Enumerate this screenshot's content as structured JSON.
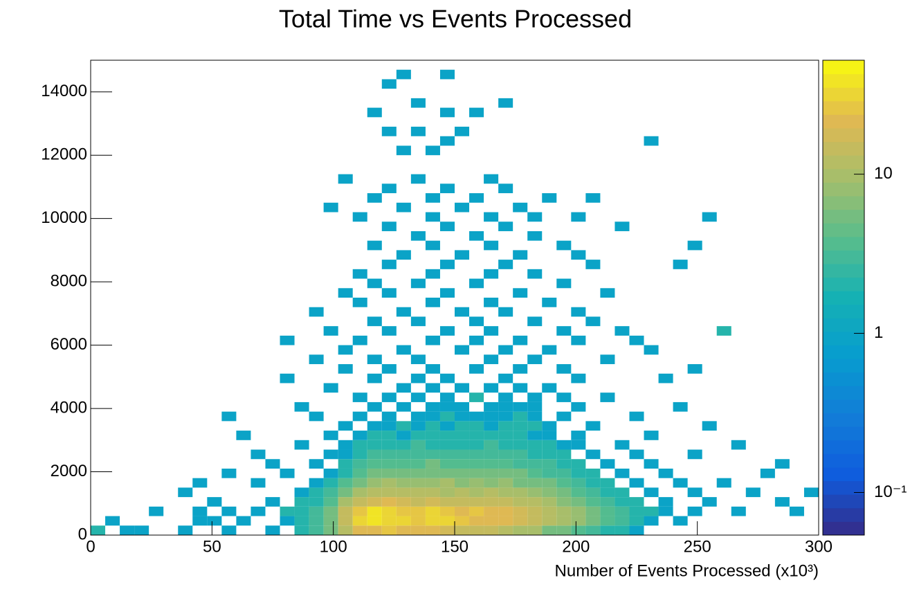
{
  "chart_data": {
    "type": "heatmap",
    "title": "Total Time vs Events Processed",
    "x_label": "Number of Events Processed (x10³)",
    "xlim": [
      0,
      300
    ],
    "xticks": [
      0,
      50,
      100,
      150,
      200,
      250,
      300
    ],
    "ylim": [
      0,
      15000
    ],
    "yticks": [
      0,
      2000,
      4000,
      6000,
      8000,
      10000,
      12000,
      14000
    ],
    "zscale": "log",
    "zlim": [
      0.054,
      52
    ],
    "zticks": [
      {
        "value": 0.1,
        "label": "10⁻¹"
      },
      1,
      10
    ],
    "palette": "bird",
    "rows": [
      {
        "y": 150,
        "x": [
          3,
          15,
          21,
          39,
          57,
          75,
          87,
          93,
          99,
          105,
          111,
          117,
          123,
          129,
          135,
          141,
          147,
          153,
          159,
          165,
          171,
          177,
          183,
          189,
          195,
          201,
          207,
          213,
          219,
          225
        ],
        "values": [
          2,
          1,
          1,
          1,
          1,
          1,
          2,
          3,
          5,
          12,
          20,
          22,
          25,
          20,
          22,
          20,
          18,
          16,
          15,
          14,
          12,
          10,
          9,
          6,
          5,
          4,
          3,
          2,
          2,
          1
        ]
      },
      {
        "y": 450,
        "x": [
          9,
          45,
          51,
          63,
          81,
          87,
          93,
          99,
          105,
          111,
          117,
          123,
          129,
          135,
          141,
          147,
          153,
          159,
          165,
          171,
          177,
          183,
          189,
          195,
          201,
          207,
          213,
          219,
          225,
          231,
          243
        ],
        "values": [
          1,
          1,
          1,
          1,
          1,
          2,
          3,
          6,
          15,
          30,
          40,
          35,
          30,
          28,
          30,
          32,
          25,
          22,
          20,
          22,
          18,
          15,
          12,
          10,
          8,
          5,
          4,
          3,
          2,
          1,
          1
        ]
      },
      {
        "y": 750,
        "x": [
          27,
          45,
          57,
          69,
          81,
          87,
          93,
          99,
          105,
          111,
          117,
          123,
          129,
          135,
          141,
          147,
          153,
          159,
          165,
          171,
          177,
          183,
          189,
          195,
          201,
          207,
          213,
          219,
          225,
          231,
          237,
          249,
          267,
          291
        ],
        "values": [
          1,
          1,
          1,
          1,
          2,
          2,
          3,
          6,
          14,
          28,
          38,
          30,
          28,
          25,
          30,
          25,
          22,
          24,
          20,
          22,
          18,
          16,
          12,
          9,
          8,
          5,
          4,
          3,
          2,
          2,
          1,
          1,
          1,
          1
        ]
      },
      {
        "y": 1050,
        "x": [
          51,
          75,
          87,
          93,
          99,
          105,
          111,
          117,
          123,
          129,
          135,
          141,
          147,
          153,
          159,
          165,
          171,
          177,
          183,
          189,
          195,
          201,
          207,
          213,
          219,
          225,
          237,
          255,
          285
        ],
        "values": [
          1,
          1,
          2,
          2,
          4,
          10,
          14,
          18,
          20,
          18,
          16,
          18,
          16,
          15,
          14,
          16,
          14,
          12,
          12,
          10,
          7,
          6,
          4,
          3,
          2,
          2,
          1,
          1,
          1
        ]
      },
      {
        "y": 1350,
        "x": [
          39,
          87,
          93,
          99,
          105,
          111,
          117,
          123,
          129,
          135,
          141,
          147,
          153,
          159,
          165,
          171,
          177,
          183,
          189,
          195,
          201,
          207,
          213,
          219,
          231,
          249,
          273,
          297
        ],
        "values": [
          1,
          1,
          2,
          3,
          6,
          10,
          12,
          12,
          11,
          12,
          12,
          10,
          11,
          10,
          11,
          10,
          9,
          8,
          7,
          5,
          4,
          3,
          2,
          2,
          1,
          1,
          1,
          1
        ]
      },
      {
        "y": 1650,
        "x": [
          45,
          69,
          93,
          99,
          105,
          111,
          117,
          123,
          129,
          135,
          141,
          147,
          153,
          159,
          165,
          171,
          177,
          183,
          189,
          195,
          201,
          207,
          213,
          225,
          243,
          261
        ],
        "values": [
          1,
          1,
          1,
          2,
          4,
          6,
          8,
          9,
          8,
          8,
          8,
          9,
          7,
          8,
          7,
          8,
          6,
          6,
          5,
          4,
          3,
          2,
          2,
          1,
          1,
          1
        ]
      },
      {
        "y": 1950,
        "x": [
          57,
          81,
          99,
          105,
          111,
          117,
          123,
          129,
          135,
          141,
          147,
          153,
          159,
          165,
          171,
          177,
          183,
          189,
          195,
          201,
          207,
          219,
          237,
          279
        ],
        "values": [
          1,
          1,
          1,
          2,
          4,
          5,
          6,
          6,
          5,
          6,
          6,
          5,
          6,
          5,
          5,
          5,
          4,
          3,
          3,
          2,
          2,
          1,
          1,
          1
        ]
      },
      {
        "y": 2250,
        "x": [
          75,
          93,
          105,
          111,
          117,
          123,
          129,
          135,
          141,
          147,
          153,
          159,
          165,
          171,
          177,
          183,
          189,
          195,
          201,
          213,
          231,
          285
        ],
        "values": [
          1,
          1,
          2,
          3,
          4,
          4,
          4,
          4,
          5,
          4,
          4,
          4,
          4,
          4,
          3,
          3,
          3,
          2,
          2,
          1,
          1,
          1
        ]
      },
      {
        "y": 2550,
        "x": [
          69,
          99,
          105,
          111,
          117,
          123,
          129,
          135,
          141,
          147,
          153,
          159,
          165,
          171,
          177,
          183,
          189,
          195,
          207,
          225,
          249
        ],
        "values": [
          1,
          1,
          1,
          2,
          3,
          3,
          3,
          3,
          3,
          3,
          3,
          3,
          3,
          3,
          3,
          2,
          2,
          2,
          1,
          1,
          1
        ]
      },
      {
        "y": 2850,
        "x": [
          87,
          105,
          111,
          117,
          123,
          129,
          135,
          141,
          147,
          153,
          159,
          165,
          171,
          177,
          183,
          189,
          195,
          201,
          219,
          267
        ],
        "values": [
          1,
          1,
          2,
          2,
          2,
          2,
          3,
          2,
          2,
          2,
          2,
          3,
          2,
          2,
          2,
          2,
          1,
          1,
          1,
          1
        ]
      },
      {
        "y": 3150,
        "x": [
          63,
          99,
          111,
          117,
          123,
          129,
          135,
          141,
          147,
          153,
          159,
          165,
          171,
          177,
          183,
          189,
          201,
          231
        ],
        "values": [
          1,
          1,
          1,
          2,
          2,
          1,
          2,
          2,
          2,
          2,
          2,
          2,
          2,
          2,
          1,
          1,
          1,
          1
        ]
      },
      {
        "y": 3450,
        "x": [
          105,
          117,
          123,
          129,
          135,
          141,
          147,
          153,
          159,
          165,
          171,
          177,
          183,
          189,
          207,
          255
        ],
        "values": [
          1,
          1,
          1,
          2,
          1,
          2,
          1,
          2,
          2,
          1,
          2,
          2,
          2,
          1,
          1,
          1
        ]
      },
      {
        "y": 3750,
        "x": [
          57,
          93,
          111,
          123,
          135,
          141,
          147,
          153,
          159,
          165,
          171,
          177,
          183,
          195,
          225
        ],
        "values": [
          1,
          1,
          1,
          1,
          1,
          1,
          2,
          1,
          1,
          1,
          1,
          2,
          1,
          1,
          1
        ]
      },
      {
        "y": 4050,
        "x": [
          87,
          117,
          129,
          141,
          147,
          153,
          165,
          171,
          177,
          183,
          201,
          243
        ],
        "values": [
          1,
          1,
          1,
          1,
          1,
          1,
          1,
          1,
          1,
          1,
          1,
          1
        ]
      },
      {
        "y": 4350,
        "x": [
          111,
          123,
          135,
          147,
          159,
          171,
          183,
          195,
          213
        ],
        "values": [
          1,
          1,
          1,
          1,
          2,
          1,
          1,
          1,
          1
        ]
      },
      {
        "y": 4650,
        "x": [
          99,
          129,
          141,
          153,
          165,
          177,
          189
        ],
        "values": [
          1,
          1,
          1,
          1,
          1,
          1,
          1
        ]
      },
      {
        "y": 4950,
        "x": [
          81,
          117,
          135,
          147,
          171,
          201,
          237
        ],
        "values": [
          1,
          1,
          1,
          1,
          1,
          1,
          1
        ]
      },
      {
        "y": 5250,
        "x": [
          105,
          123,
          141,
          159,
          177,
          195,
          249
        ],
        "values": [
          1,
          1,
          1,
          1,
          1,
          1,
          1
        ]
      },
      {
        "y": 5550,
        "x": [
          93,
          117,
          135,
          165,
          183,
          213
        ],
        "values": [
          1,
          1,
          1,
          1,
          1,
          1
        ]
      },
      {
        "y": 5850,
        "x": [
          105,
          129,
          153,
          171,
          189,
          231
        ],
        "values": [
          1,
          1,
          1,
          1,
          1,
          1
        ]
      },
      {
        "y": 6150,
        "x": [
          81,
          111,
          141,
          159,
          177,
          201,
          225
        ],
        "values": [
          1,
          1,
          1,
          1,
          1,
          1,
          1
        ]
      },
      {
        "y": 6450,
        "x": [
          99,
          123,
          147,
          165,
          195,
          219,
          261
        ],
        "values": [
          1,
          1,
          1,
          1,
          1,
          1,
          2
        ]
      },
      {
        "y": 6750,
        "x": [
          117,
          135,
          159,
          183,
          207
        ],
        "values": [
          1,
          1,
          1,
          1,
          1
        ]
      },
      {
        "y": 7050,
        "x": [
          93,
          129,
          153,
          171,
          201
        ],
        "values": [
          1,
          1,
          1,
          1,
          1
        ]
      },
      {
        "y": 7350,
        "x": [
          111,
          141,
          165,
          189
        ],
        "values": [
          1,
          1,
          1,
          1
        ]
      },
      {
        "y": 7650,
        "x": [
          105,
          123,
          147,
          177,
          213
        ],
        "values": [
          1,
          1,
          1,
          1,
          1
        ]
      },
      {
        "y": 7950,
        "x": [
          117,
          135,
          159,
          195
        ],
        "values": [
          1,
          1,
          1,
          1
        ]
      },
      {
        "y": 8250,
        "x": [
          111,
          141,
          165,
          183
        ],
        "values": [
          1,
          1,
          1,
          1
        ]
      },
      {
        "y": 8550,
        "x": [
          123,
          147,
          171,
          207,
          243
        ],
        "values": [
          1,
          1,
          1,
          1,
          1
        ]
      },
      {
        "y": 8850,
        "x": [
          129,
          153,
          177,
          201
        ],
        "values": [
          1,
          1,
          1,
          1
        ]
      },
      {
        "y": 9150,
        "x": [
          117,
          141,
          165,
          195,
          249
        ],
        "values": [
          1,
          1,
          1,
          1,
          1
        ]
      },
      {
        "y": 9450,
        "x": [
          135,
          159,
          183
        ],
        "values": [
          1,
          1,
          1
        ]
      },
      {
        "y": 9750,
        "x": [
          123,
          147,
          171,
          219
        ],
        "values": [
          1,
          1,
          1,
          1
        ]
      },
      {
        "y": 10050,
        "x": [
          111,
          141,
          165,
          183,
          201,
          255
        ],
        "values": [
          1,
          1,
          1,
          1,
          1,
          1
        ]
      },
      {
        "y": 10350,
        "x": [
          99,
          129,
          153,
          177
        ],
        "values": [
          1,
          1,
          1,
          1
        ]
      },
      {
        "y": 10650,
        "x": [
          117,
          141,
          159,
          189,
          207
        ],
        "values": [
          1,
          1,
          1,
          1,
          1
        ]
      },
      {
        "y": 10950,
        "x": [
          123,
          147,
          171
        ],
        "values": [
          1,
          1,
          1
        ]
      },
      {
        "y": 11250,
        "x": [
          105,
          135,
          165
        ],
        "values": [
          1,
          1,
          1
        ]
      },
      {
        "y": 12150,
        "x": [
          129,
          141
        ],
        "values": [
          1,
          1
        ]
      },
      {
        "y": 12450,
        "x": [
          147,
          231
        ],
        "values": [
          1,
          1
        ]
      },
      {
        "y": 12750,
        "x": [
          123,
          135,
          153
        ],
        "values": [
          1,
          1,
          1
        ]
      },
      {
        "y": 13350,
        "x": [
          117,
          147,
          159
        ],
        "values": [
          1,
          1,
          1
        ]
      },
      {
        "y": 13650,
        "x": [
          135,
          171
        ],
        "values": [
          1,
          1
        ]
      },
      {
        "y": 14250,
        "x": [
          123
        ],
        "values": [
          1
        ]
      },
      {
        "y": 14550,
        "x": [
          129,
          147
        ],
        "values": [
          1,
          1
        ]
      }
    ]
  }
}
